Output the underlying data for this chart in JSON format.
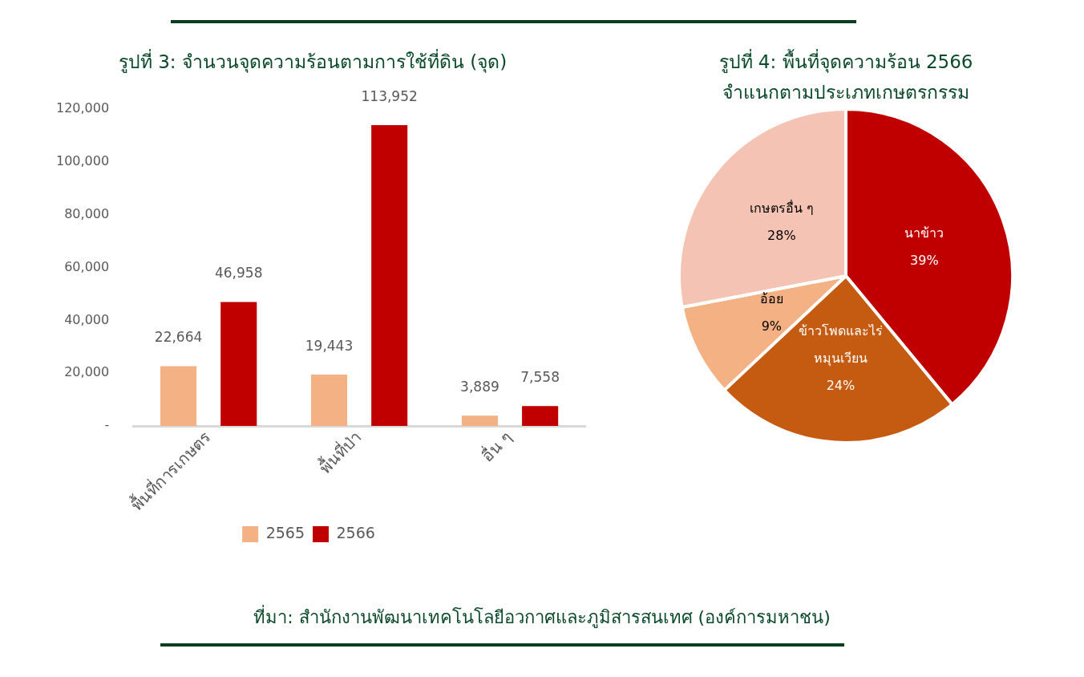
{
  "chart_data": [
    {
      "type": "bar",
      "title": "รูปที่ 3: จำนวนจุดความร้อนตามการใช้ที่ดิน (จุด)",
      "categories": [
        "พื้นที่การเกษตร",
        "พื้นที่ป่า",
        "อื่น ๆ"
      ],
      "series": [
        {
          "name": "2565",
          "color": "#f4b183",
          "values": [
            22664,
            19443,
            3889
          ],
          "value_labels": [
            "22,664",
            "19,443",
            "3,889"
          ]
        },
        {
          "name": "2566",
          "color": "#c00000",
          "values": [
            46958,
            113952,
            7558
          ],
          "value_labels": [
            "46,958",
            "113,952",
            "7,558"
          ]
        }
      ],
      "ylim": [
        0,
        120000
      ],
      "yticks": [
        {
          "value": 0,
          "label": "-"
        },
        {
          "value": 20000,
          "label": "20,000"
        },
        {
          "value": 40000,
          "label": "40,000"
        },
        {
          "value": 60000,
          "label": "60,000"
        },
        {
          "value": 80000,
          "label": "80,000"
        },
        {
          "value": 100000,
          "label": "100,000"
        },
        {
          "value": 120000,
          "label": "120,000"
        }
      ],
      "grid": false,
      "legend": "bottom",
      "annotations": [
        "ที่มา: สำนักงานพัฒนาเทคโนโลยีอวกาศและภูมิสารสนเทศ (องค์การมหาชน)"
      ]
    },
    {
      "type": "pie",
      "title": "รูปที่ 4: พื้นที่จุดความร้อน 2566",
      "subtitle": "จำแนกตามประเภทเกษตรกรรม",
      "categories": [
        "นาข้าว",
        "ข้าวโพดและไร่หมุนเวียน",
        "อ้อย",
        "เกษตรอื่น ๆ"
      ],
      "values": [
        39,
        24,
        9,
        28
      ],
      "value_labels": [
        "39%",
        "24%",
        "9%",
        "28%"
      ],
      "colors": [
        "#c00000",
        "#c55a11",
        "#f4b183",
        "#f4c3b3"
      ],
      "legend": false
    }
  ]
}
